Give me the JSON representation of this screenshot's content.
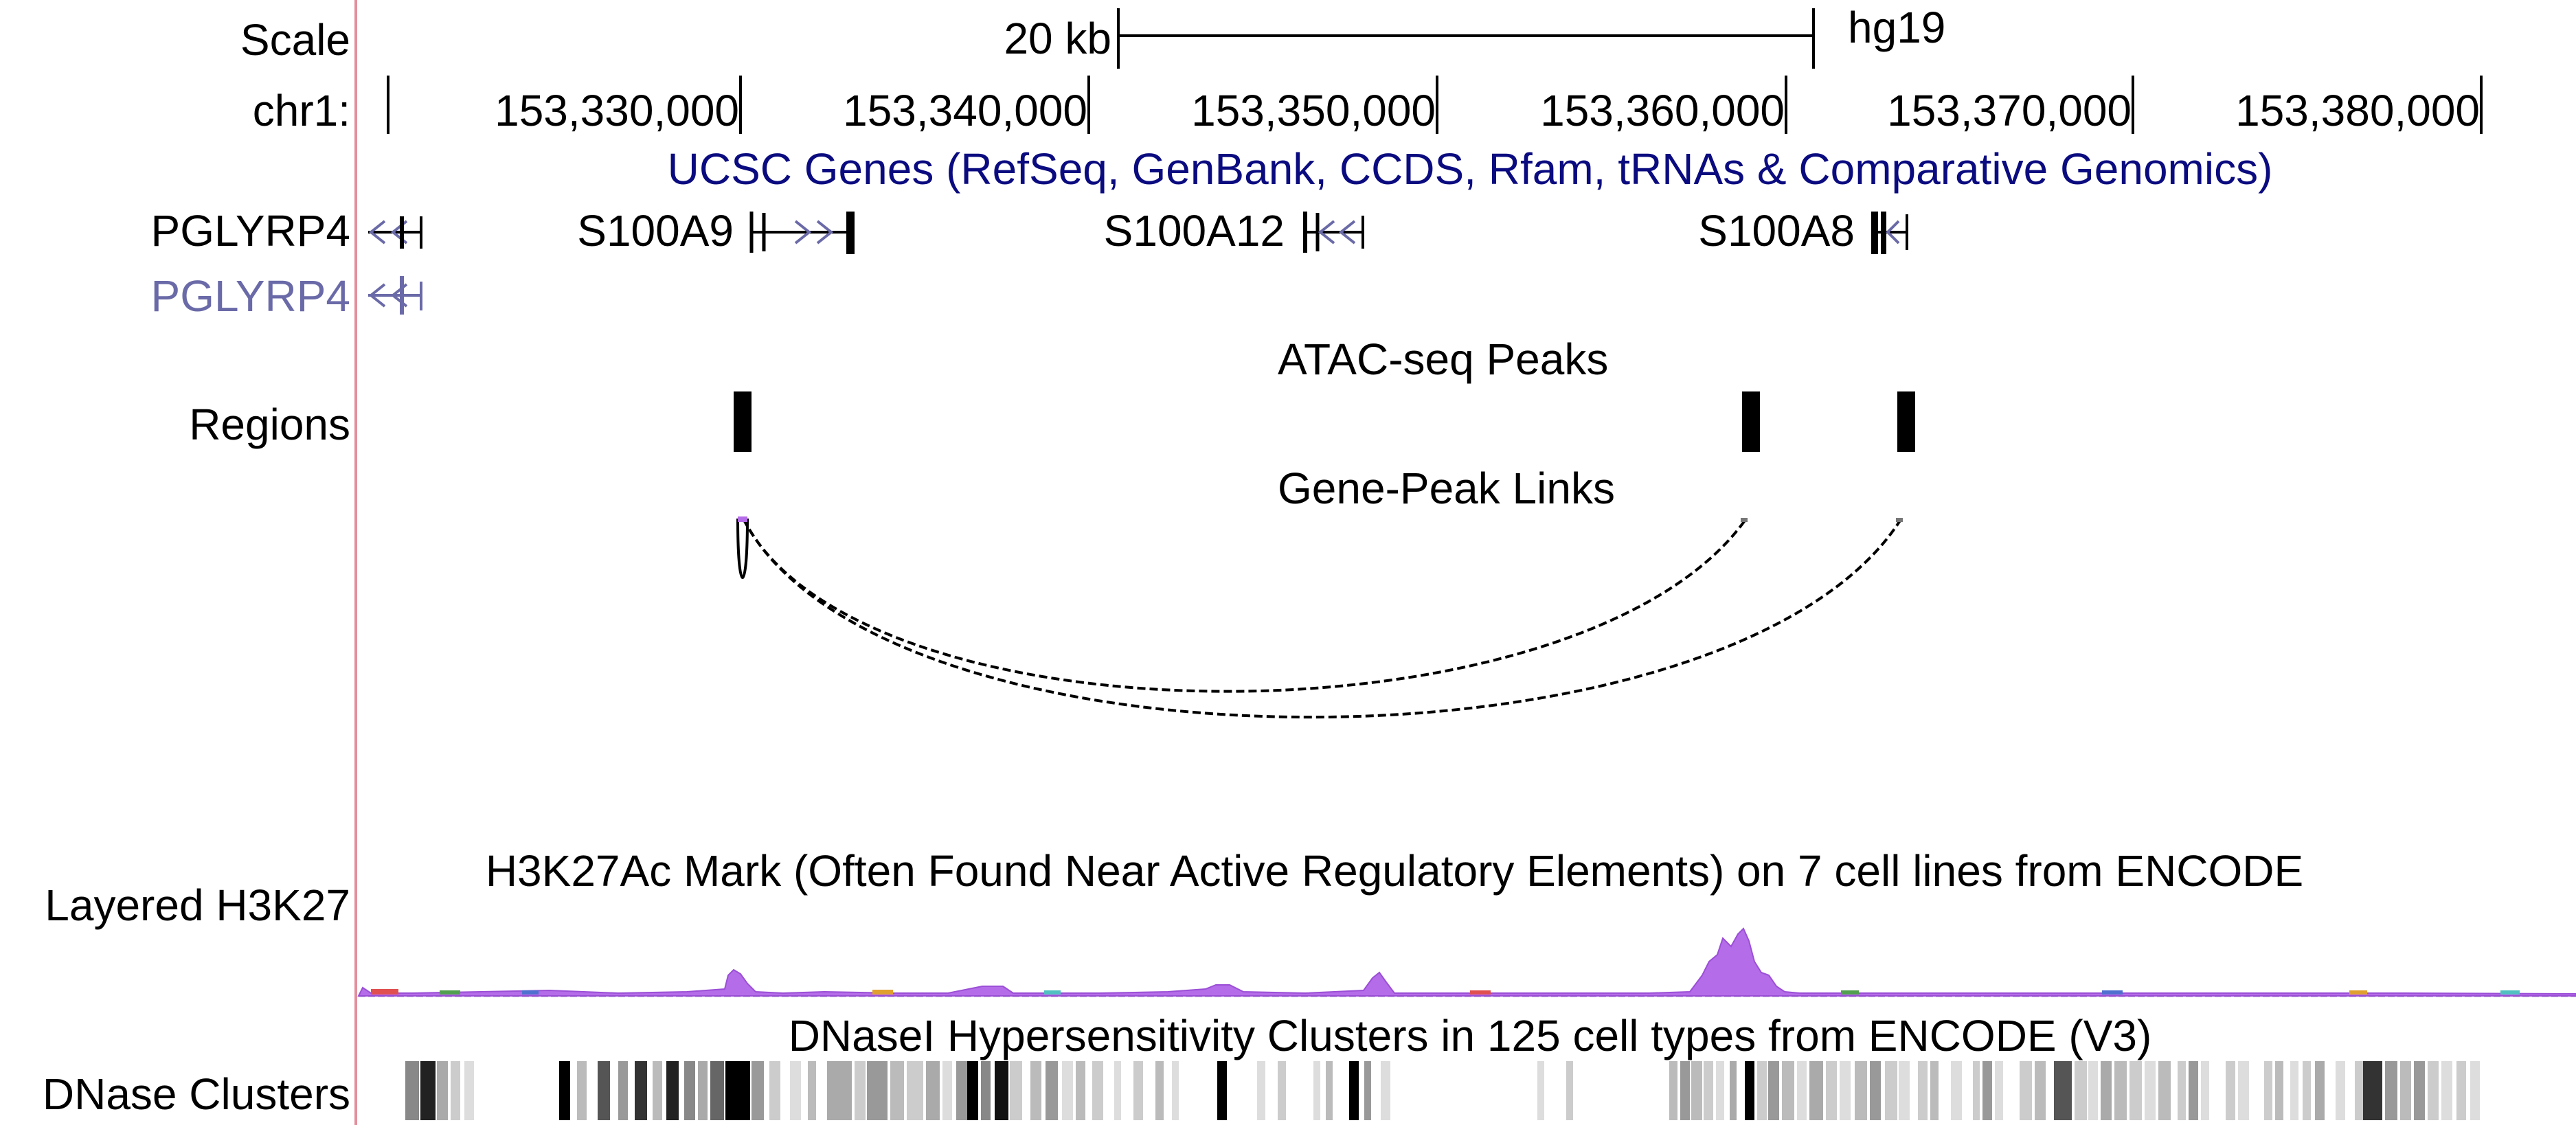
{
  "scale": {
    "label": "Scale",
    "bar_label": "20 kb",
    "assembly": "hg19"
  },
  "ruler": {
    "chrom_label": "chr1:",
    "ticks": [
      "153,330,000",
      "153,340,000",
      "153,350,000",
      "153,360,000",
      "153,370,000",
      "153,380,000"
    ]
  },
  "genes_track": {
    "title": "UCSC Genes (RefSeq, GenBank, CCDS, Rfam, tRNAs & Comparative Genomics)",
    "title_color": "#0b0b80",
    "genes": [
      {
        "name": "PGLYRP4",
        "strand": "-"
      },
      {
        "name": "S100A9",
        "strand": "+"
      },
      {
        "name": "S100A12",
        "strand": "-"
      },
      {
        "name": "S100A8",
        "strand": "-"
      }
    ],
    "secondary_gene": {
      "name": "PGLYRP4",
      "color": "#6a6aa8"
    }
  },
  "atac_track": {
    "title": "ATAC-seq Peaks",
    "label": "Regions",
    "peak_count": 3
  },
  "links_track": {
    "title": "Gene-Peak Links",
    "link_count": 2
  },
  "h3k27_track": {
    "title": "H3K27Ac Mark (Often Found Near Active Regulatory Elements) on 7 cell lines from ENCODE",
    "label": "Layered H3K27",
    "fill_color": "#b56ce8"
  },
  "dnase_track": {
    "title": "DNaseI Hypersensitivity Clusters in 125 cell types from ENCODE (V3)",
    "label": "DNase Clusters"
  },
  "colors": {
    "left_divider": "#e38f9d",
    "link_line": "#000000"
  }
}
